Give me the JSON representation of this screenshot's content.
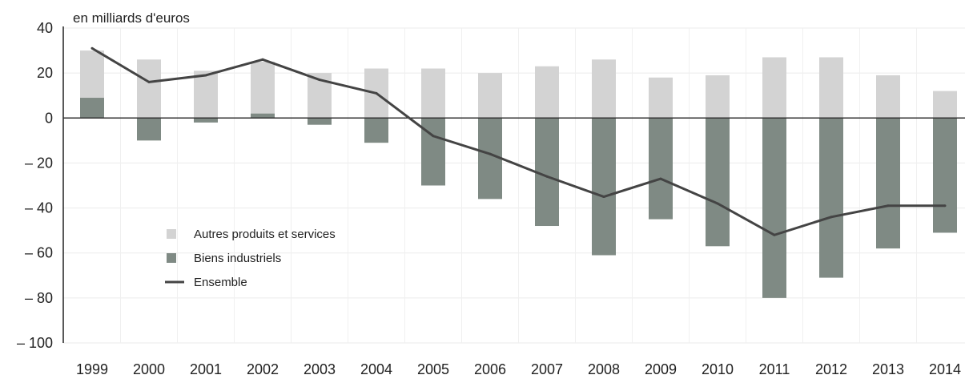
{
  "chart_data": {
    "type": "bar",
    "ylabel": "en milliards d'euros",
    "ylim": [
      -100,
      40
    ],
    "yticks": [
      40,
      20,
      0,
      -20,
      -40,
      -60,
      -80,
      -100
    ],
    "ytick_labels": [
      "40",
      "20",
      "0",
      "– 20",
      "– 40",
      "– 60",
      "– 80",
      "– 100"
    ],
    "categories": [
      "1999",
      "2000",
      "2001",
      "2002",
      "2003",
      "2004",
      "2005",
      "2006",
      "2007",
      "2008",
      "2009",
      "2010",
      "2011",
      "2012",
      "2013",
      "2014"
    ],
    "grid": true,
    "legend_position": "lower-left",
    "series": [
      {
        "name": "Autres produits et services",
        "kind": "bar",
        "color": "#d3d3d3",
        "values": [
          21,
          26,
          21,
          23,
          20,
          22,
          22,
          20,
          23,
          26,
          18,
          19,
          27,
          27,
          19,
          12
        ]
      },
      {
        "name": "Biens industriels",
        "kind": "bar",
        "color": "#7f8a84",
        "values": [
          9,
          -10,
          -2,
          2,
          -3,
          -11,
          -30,
          -36,
          -48,
          -61,
          -45,
          -57,
          -80,
          -71,
          -58,
          -51
        ]
      },
      {
        "name": "Ensemble",
        "kind": "line",
        "color": "#444444",
        "values": [
          31,
          16,
          19,
          26,
          17,
          11,
          -8,
          -16,
          -26,
          -35,
          -27,
          -38,
          -52,
          -44,
          -39,
          -39
        ]
      }
    ]
  }
}
